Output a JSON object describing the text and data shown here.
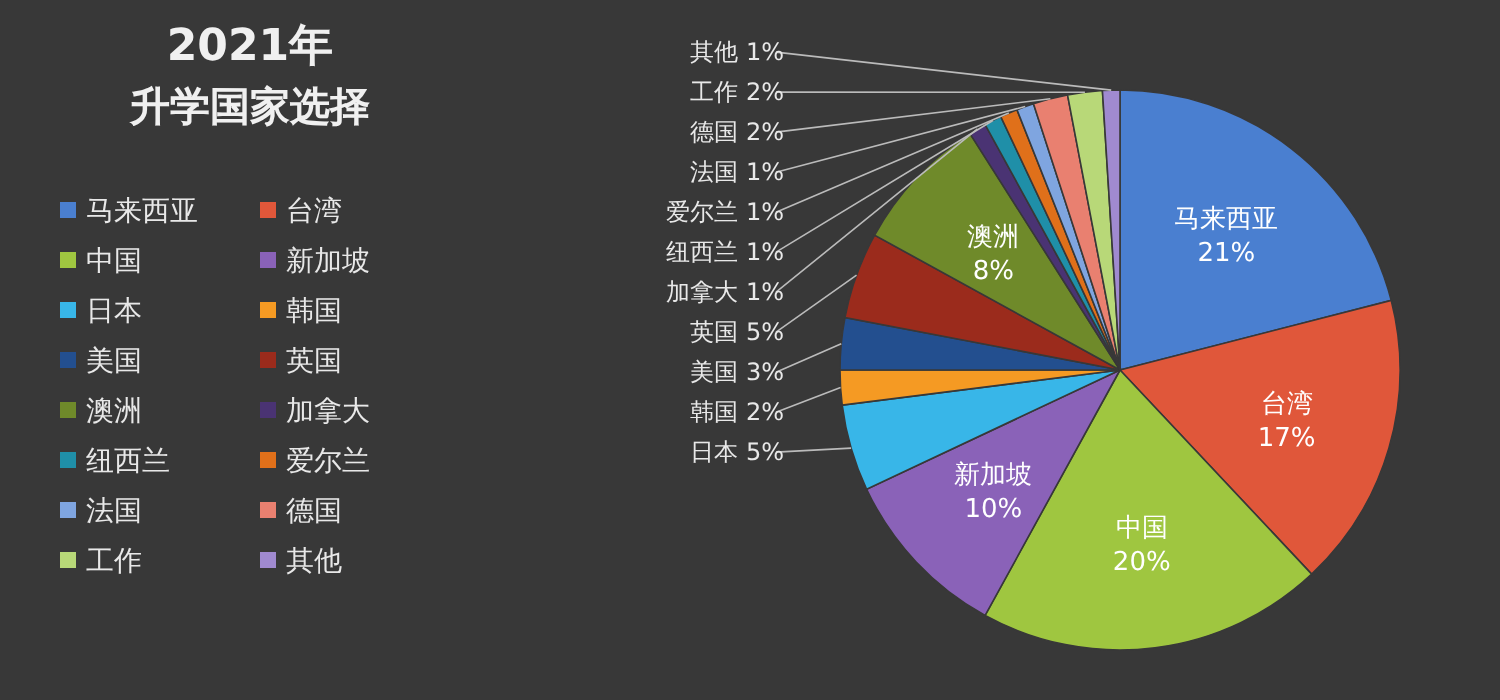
{
  "chart_data": {
    "type": "pie",
    "title": "2021年",
    "subtitle": "升学国家选择",
    "legend": "left",
    "categories": [
      "马来西亚",
      "台湾",
      "中国",
      "新加坡",
      "日本",
      "韩国",
      "美国",
      "英国",
      "澳洲",
      "加拿大",
      "纽西兰",
      "爱尔兰",
      "法国",
      "德国",
      "工作",
      "其他"
    ],
    "values": [
      21,
      17,
      20,
      10,
      5,
      2,
      3,
      5,
      8,
      1,
      1,
      1,
      1,
      2,
      2,
      1
    ],
    "value_labels": [
      "21%",
      "17%",
      "20%",
      "10%",
      "5%",
      "2%",
      "3%",
      "5%",
      "8%",
      "1%",
      "1%",
      "1%",
      "1%",
      "2%",
      "2%",
      "1%"
    ],
    "colors": [
      "#4a7fd0",
      "#e0573a",
      "#9fc640",
      "#8a62b8",
      "#38b6e8",
      "#f59a23",
      "#234f8f",
      "#9b2b1c",
      "#6f8a2a",
      "#4a3373",
      "#1f8fa8",
      "#e0701a",
      "#7fa5e0",
      "#e98070",
      "#b8d878",
      "#a08ad0"
    ]
  }
}
